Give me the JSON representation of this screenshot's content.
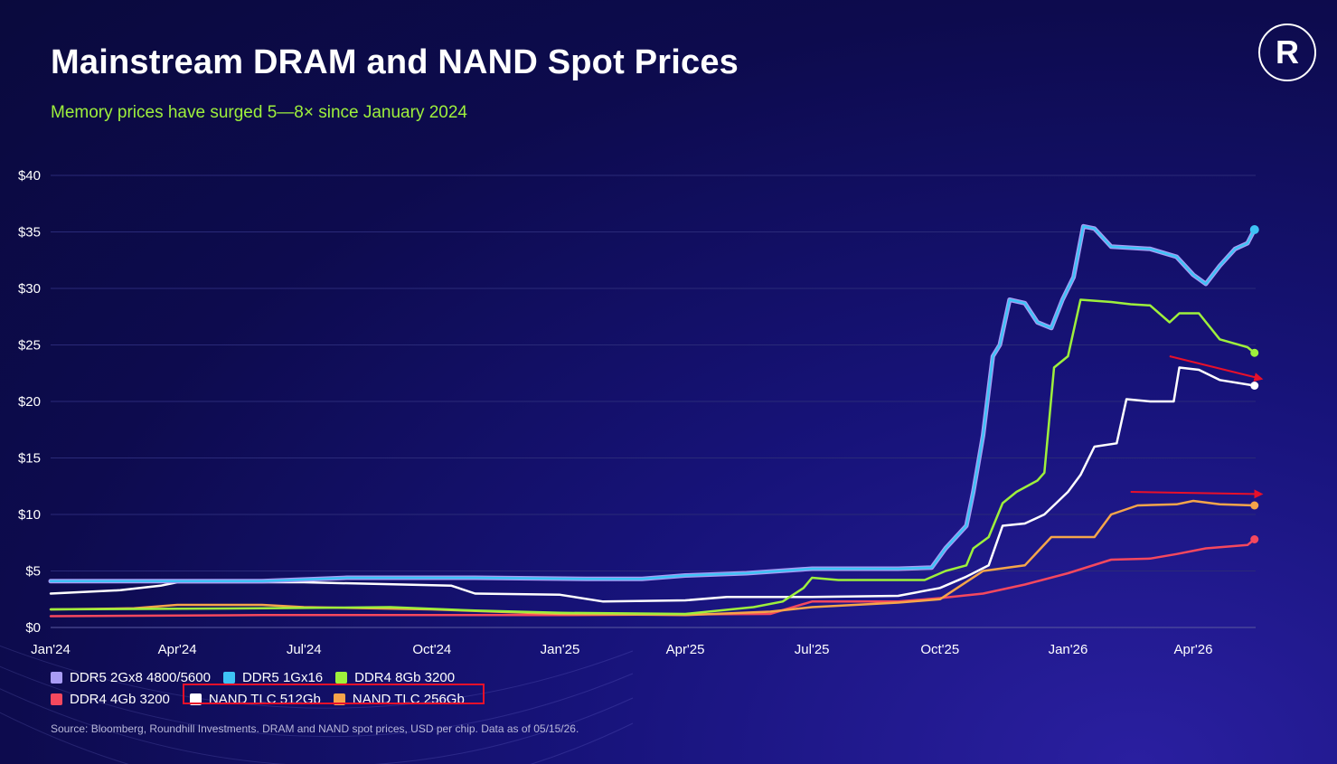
{
  "header": {
    "title": "Mainstream DRAM and NAND Spot Prices",
    "subtitle": "Memory prices have surged 5—8× since January 2024",
    "logo_glyph": "R"
  },
  "footer": {
    "source": "Source: Bloomberg, Roundhill Investments. DRAM and NAND spot prices, USD per chip. Data as of 05/15/26."
  },
  "colors": {
    "background": "#0d0b4e",
    "ddr5_2g": "#a99cf5",
    "ddr5_1g": "#3ec3f5",
    "ddr4_8g": "#9ef03c",
    "ddr4_4g": "#f5485e",
    "nand_512": "#ffffff",
    "nand_256": "#f5a54a",
    "arrow": "#e8102a",
    "highlight": "#e8102a"
  },
  "chart_data": {
    "type": "line",
    "title": "Mainstream DRAM and NAND Spot Prices",
    "subtitle": "Memory prices have surged 5—8× since January 2024",
    "x_range": [
      "2024-01-01",
      "2026-05-15"
    ],
    "x_ticks": [
      {
        "date": "2024-01-01",
        "label": "Jan'24"
      },
      {
        "date": "2024-04-01",
        "label": "Apr'24"
      },
      {
        "date": "2024-07-01",
        "label": "Jul'24"
      },
      {
        "date": "2024-10-01",
        "label": "Oct'24"
      },
      {
        "date": "2025-01-01",
        "label": "Jan'25"
      },
      {
        "date": "2025-04-01",
        "label": "Apr'25"
      },
      {
        "date": "2025-07-01",
        "label": "Jul'25"
      },
      {
        "date": "2025-10-01",
        "label": "Oct'25"
      },
      {
        "date": "2026-01-01",
        "label": "Jan'26"
      },
      {
        "date": "2026-04-01",
        "label": "Apr'26"
      }
    ],
    "ylim": [
      0,
      40
    ],
    "y_ticks": [
      {
        "value": 0,
        "label": "$0"
      },
      {
        "value": 5,
        "label": "$5"
      },
      {
        "value": 10,
        "label": "$10"
      },
      {
        "value": 15,
        "label": "$15"
      },
      {
        "value": 20,
        "label": "$20"
      },
      {
        "value": 25,
        "label": "$25"
      },
      {
        "value": 30,
        "label": "$30"
      },
      {
        "value": 35,
        "label": "$35"
      },
      {
        "value": 40,
        "label": "$40"
      }
    ],
    "grid": true,
    "legend": {
      "placement": "bottom-left",
      "rows": [
        [
          {
            "label": "DDR5 2Gx8 4800/5600",
            "color_key": "ddr5_2g"
          },
          {
            "label": "DDR5 1Gx16",
            "color_key": "ddr5_1g"
          },
          {
            "label": "DDR4 8Gb 3200",
            "color_key": "ddr4_8g"
          }
        ],
        [
          {
            "label": "DDR4 4Gb 3200",
            "color_key": "ddr4_4g"
          },
          {
            "label": "NAND TLC 512Gb",
            "color_key": "nand_512"
          },
          {
            "label": "NAND TLC 256Gb",
            "color_key": "nand_256"
          }
        ]
      ]
    },
    "series": [
      {
        "name": "DDR5 2Gx8 4800/5600",
        "color_key": "ddr5_2g",
        "points": [
          [
            "2024-01-01",
            4.1
          ],
          [
            "2024-06-01",
            4.1
          ],
          [
            "2024-08-01",
            4.4
          ],
          [
            "2024-11-01",
            4.4
          ],
          [
            "2025-01-20",
            4.3
          ],
          [
            "2025-03-01",
            4.3
          ],
          [
            "2025-04-01",
            4.6
          ],
          [
            "2025-05-15",
            4.8
          ],
          [
            "2025-07-01",
            5.2
          ],
          [
            "2025-09-01",
            5.2
          ],
          [
            "2025-09-25",
            5.3
          ],
          [
            "2025-10-05",
            7.0
          ],
          [
            "2025-10-20",
            9.0
          ],
          [
            "2025-10-25",
            12.0
          ],
          [
            "2025-11-01",
            17.0
          ],
          [
            "2025-11-08",
            24.0
          ],
          [
            "2025-11-13",
            25.0
          ],
          [
            "2025-11-20",
            29.0
          ],
          [
            "2025-12-01",
            28.7
          ],
          [
            "2025-12-10",
            27.0
          ],
          [
            "2025-12-20",
            26.5
          ],
          [
            "2025-12-28",
            29.0
          ],
          [
            "2026-01-05",
            31.0
          ],
          [
            "2026-01-12",
            35.5
          ],
          [
            "2026-01-20",
            35.3
          ],
          [
            "2026-02-01",
            33.7
          ],
          [
            "2026-03-01",
            33.5
          ],
          [
            "2026-03-20",
            32.8
          ],
          [
            "2026-04-01",
            31.2
          ],
          [
            "2026-04-10",
            30.4
          ],
          [
            "2026-04-20",
            32.0
          ],
          [
            "2026-05-01",
            33.5
          ],
          [
            "2026-05-10",
            34.0
          ],
          [
            "2026-05-15",
            35.2
          ]
        ]
      },
      {
        "name": "DDR5 1Gx16",
        "color_key": "ddr5_1g",
        "points": [
          [
            "2024-01-01",
            4.1
          ],
          [
            "2024-06-01",
            4.1
          ],
          [
            "2024-08-01",
            4.4
          ],
          [
            "2024-11-01",
            4.4
          ],
          [
            "2025-01-20",
            4.3
          ],
          [
            "2025-03-01",
            4.3
          ],
          [
            "2025-04-01",
            4.6
          ],
          [
            "2025-05-15",
            4.8
          ],
          [
            "2025-07-01",
            5.2
          ],
          [
            "2025-09-01",
            5.2
          ],
          [
            "2025-09-25",
            5.3
          ],
          [
            "2025-10-05",
            7.0
          ],
          [
            "2025-10-20",
            9.0
          ],
          [
            "2025-10-25",
            12.0
          ],
          [
            "2025-11-01",
            17.0
          ],
          [
            "2025-11-08",
            24.0
          ],
          [
            "2025-11-13",
            25.0
          ],
          [
            "2025-11-20",
            29.0
          ],
          [
            "2025-12-01",
            28.7
          ],
          [
            "2025-12-10",
            27.0
          ],
          [
            "2025-12-20",
            26.5
          ],
          [
            "2025-12-28",
            29.0
          ],
          [
            "2026-01-05",
            31.0
          ],
          [
            "2026-01-12",
            35.5
          ],
          [
            "2026-01-20",
            35.3
          ],
          [
            "2026-02-01",
            33.7
          ],
          [
            "2026-03-01",
            33.5
          ],
          [
            "2026-03-20",
            32.8
          ],
          [
            "2026-04-01",
            31.2
          ],
          [
            "2026-04-10",
            30.4
          ],
          [
            "2026-04-20",
            32.0
          ],
          [
            "2026-05-01",
            33.5
          ],
          [
            "2026-05-10",
            34.0
          ],
          [
            "2026-05-15",
            35.2
          ]
        ]
      },
      {
        "name": "DDR4 8Gb 3200",
        "color_key": "ddr4_8g",
        "points": [
          [
            "2024-01-01",
            1.6
          ],
          [
            "2024-06-01",
            1.7
          ],
          [
            "2024-09-01",
            1.8
          ],
          [
            "2024-11-01",
            1.5
          ],
          [
            "2025-01-01",
            1.3
          ],
          [
            "2025-04-01",
            1.2
          ],
          [
            "2025-05-20",
            1.8
          ],
          [
            "2025-06-10",
            2.3
          ],
          [
            "2025-06-25",
            3.5
          ],
          [
            "2025-07-01",
            4.4
          ],
          [
            "2025-07-20",
            4.2
          ],
          [
            "2025-09-20",
            4.2
          ],
          [
            "2025-10-05",
            5.0
          ],
          [
            "2025-10-20",
            5.5
          ],
          [
            "2025-10-25",
            7.0
          ],
          [
            "2025-11-05",
            8.0
          ],
          [
            "2025-11-15",
            11.0
          ],
          [
            "2025-11-25",
            12.0
          ],
          [
            "2025-12-10",
            13.0
          ],
          [
            "2025-12-15",
            13.7
          ],
          [
            "2025-12-22",
            23.0
          ],
          [
            "2026-01-01",
            24.0
          ],
          [
            "2026-01-10",
            29.0
          ],
          [
            "2026-02-01",
            28.8
          ],
          [
            "2026-02-15",
            28.6
          ],
          [
            "2026-03-01",
            28.5
          ],
          [
            "2026-03-15",
            27.0
          ],
          [
            "2026-03-22",
            27.8
          ],
          [
            "2026-04-05",
            27.8
          ],
          [
            "2026-04-20",
            25.5
          ],
          [
            "2026-05-10",
            24.8
          ],
          [
            "2026-05-15",
            24.3
          ]
        ]
      },
      {
        "name": "DDR4 4Gb 3200",
        "color_key": "ddr4_4g",
        "points": [
          [
            "2024-01-01",
            1.0
          ],
          [
            "2024-06-01",
            1.1
          ],
          [
            "2025-01-01",
            1.1
          ],
          [
            "2025-06-01",
            1.2
          ],
          [
            "2025-07-01",
            2.3
          ],
          [
            "2025-09-01",
            2.3
          ],
          [
            "2025-10-01",
            2.6
          ],
          [
            "2025-11-01",
            3.0
          ],
          [
            "2025-12-01",
            3.8
          ],
          [
            "2026-01-01",
            4.8
          ],
          [
            "2026-02-01",
            6.0
          ],
          [
            "2026-03-01",
            6.1
          ],
          [
            "2026-03-20",
            6.5
          ],
          [
            "2026-04-10",
            7.0
          ],
          [
            "2026-05-10",
            7.3
          ],
          [
            "2026-05-15",
            7.8
          ]
        ]
      },
      {
        "name": "NAND TLC 512Gb",
        "color_key": "nand_512",
        "points": [
          [
            "2024-01-01",
            3.0
          ],
          [
            "2024-02-20",
            3.3
          ],
          [
            "2024-03-20",
            3.7
          ],
          [
            "2024-04-01",
            4.0
          ],
          [
            "2024-07-01",
            4.0
          ],
          [
            "2024-10-15",
            3.7
          ],
          [
            "2024-11-01",
            3.0
          ],
          [
            "2025-01-01",
            2.9
          ],
          [
            "2025-02-01",
            2.3
          ],
          [
            "2025-04-01",
            2.4
          ],
          [
            "2025-05-01",
            2.7
          ],
          [
            "2025-07-01",
            2.7
          ],
          [
            "2025-09-01",
            2.8
          ],
          [
            "2025-10-01",
            3.5
          ],
          [
            "2025-10-20",
            4.5
          ],
          [
            "2025-11-05",
            5.5
          ],
          [
            "2025-11-15",
            9.0
          ],
          [
            "2025-12-01",
            9.2
          ],
          [
            "2025-12-15",
            10.0
          ],
          [
            "2026-01-01",
            12.0
          ],
          [
            "2026-01-10",
            13.5
          ],
          [
            "2026-01-20",
            16.0
          ],
          [
            "2026-02-05",
            16.3
          ],
          [
            "2026-02-12",
            20.2
          ],
          [
            "2026-03-01",
            20.0
          ],
          [
            "2026-03-18",
            20.0
          ],
          [
            "2026-03-22",
            23.0
          ],
          [
            "2026-04-05",
            22.8
          ],
          [
            "2026-04-20",
            21.9
          ],
          [
            "2026-05-15",
            21.4
          ]
        ]
      },
      {
        "name": "NAND TLC 256Gb",
        "color_key": "nand_256",
        "points": [
          [
            "2024-01-01",
            1.6
          ],
          [
            "2024-03-01",
            1.7
          ],
          [
            "2024-04-01",
            2.0
          ],
          [
            "2024-06-01",
            2.0
          ],
          [
            "2024-07-01",
            1.8
          ],
          [
            "2024-10-01",
            1.6
          ],
          [
            "2025-01-01",
            1.2
          ],
          [
            "2025-04-01",
            1.1
          ],
          [
            "2025-06-01",
            1.4
          ],
          [
            "2025-07-01",
            1.8
          ],
          [
            "2025-09-01",
            2.2
          ],
          [
            "2025-10-01",
            2.5
          ],
          [
            "2025-11-01",
            5.0
          ],
          [
            "2025-12-01",
            5.5
          ],
          [
            "2025-12-20",
            8.0
          ],
          [
            "2026-01-20",
            8.0
          ],
          [
            "2026-02-01",
            10.0
          ],
          [
            "2026-02-20",
            10.8
          ],
          [
            "2026-03-20",
            10.9
          ],
          [
            "2026-04-01",
            11.2
          ],
          [
            "2026-04-20",
            10.9
          ],
          [
            "2026-05-15",
            10.8
          ]
        ]
      }
    ],
    "annotations": [
      {
        "type": "arrow",
        "color_key": "arrow",
        "target_series": "NAND TLC 512Gb",
        "from": [
          "2026-03-15",
          24.0
        ],
        "to": [
          "2026-05-20",
          22.0
        ]
      },
      {
        "type": "arrow",
        "color_key": "arrow",
        "target_series": "NAND TLC 256Gb",
        "from": [
          "2026-02-15",
          12.0
        ],
        "to": [
          "2026-05-20",
          11.8
        ]
      },
      {
        "type": "highlight-box",
        "color_key": "highlight",
        "target": "legend:NAND TLC 512Gb,NAND TLC 256Gb"
      }
    ]
  }
}
